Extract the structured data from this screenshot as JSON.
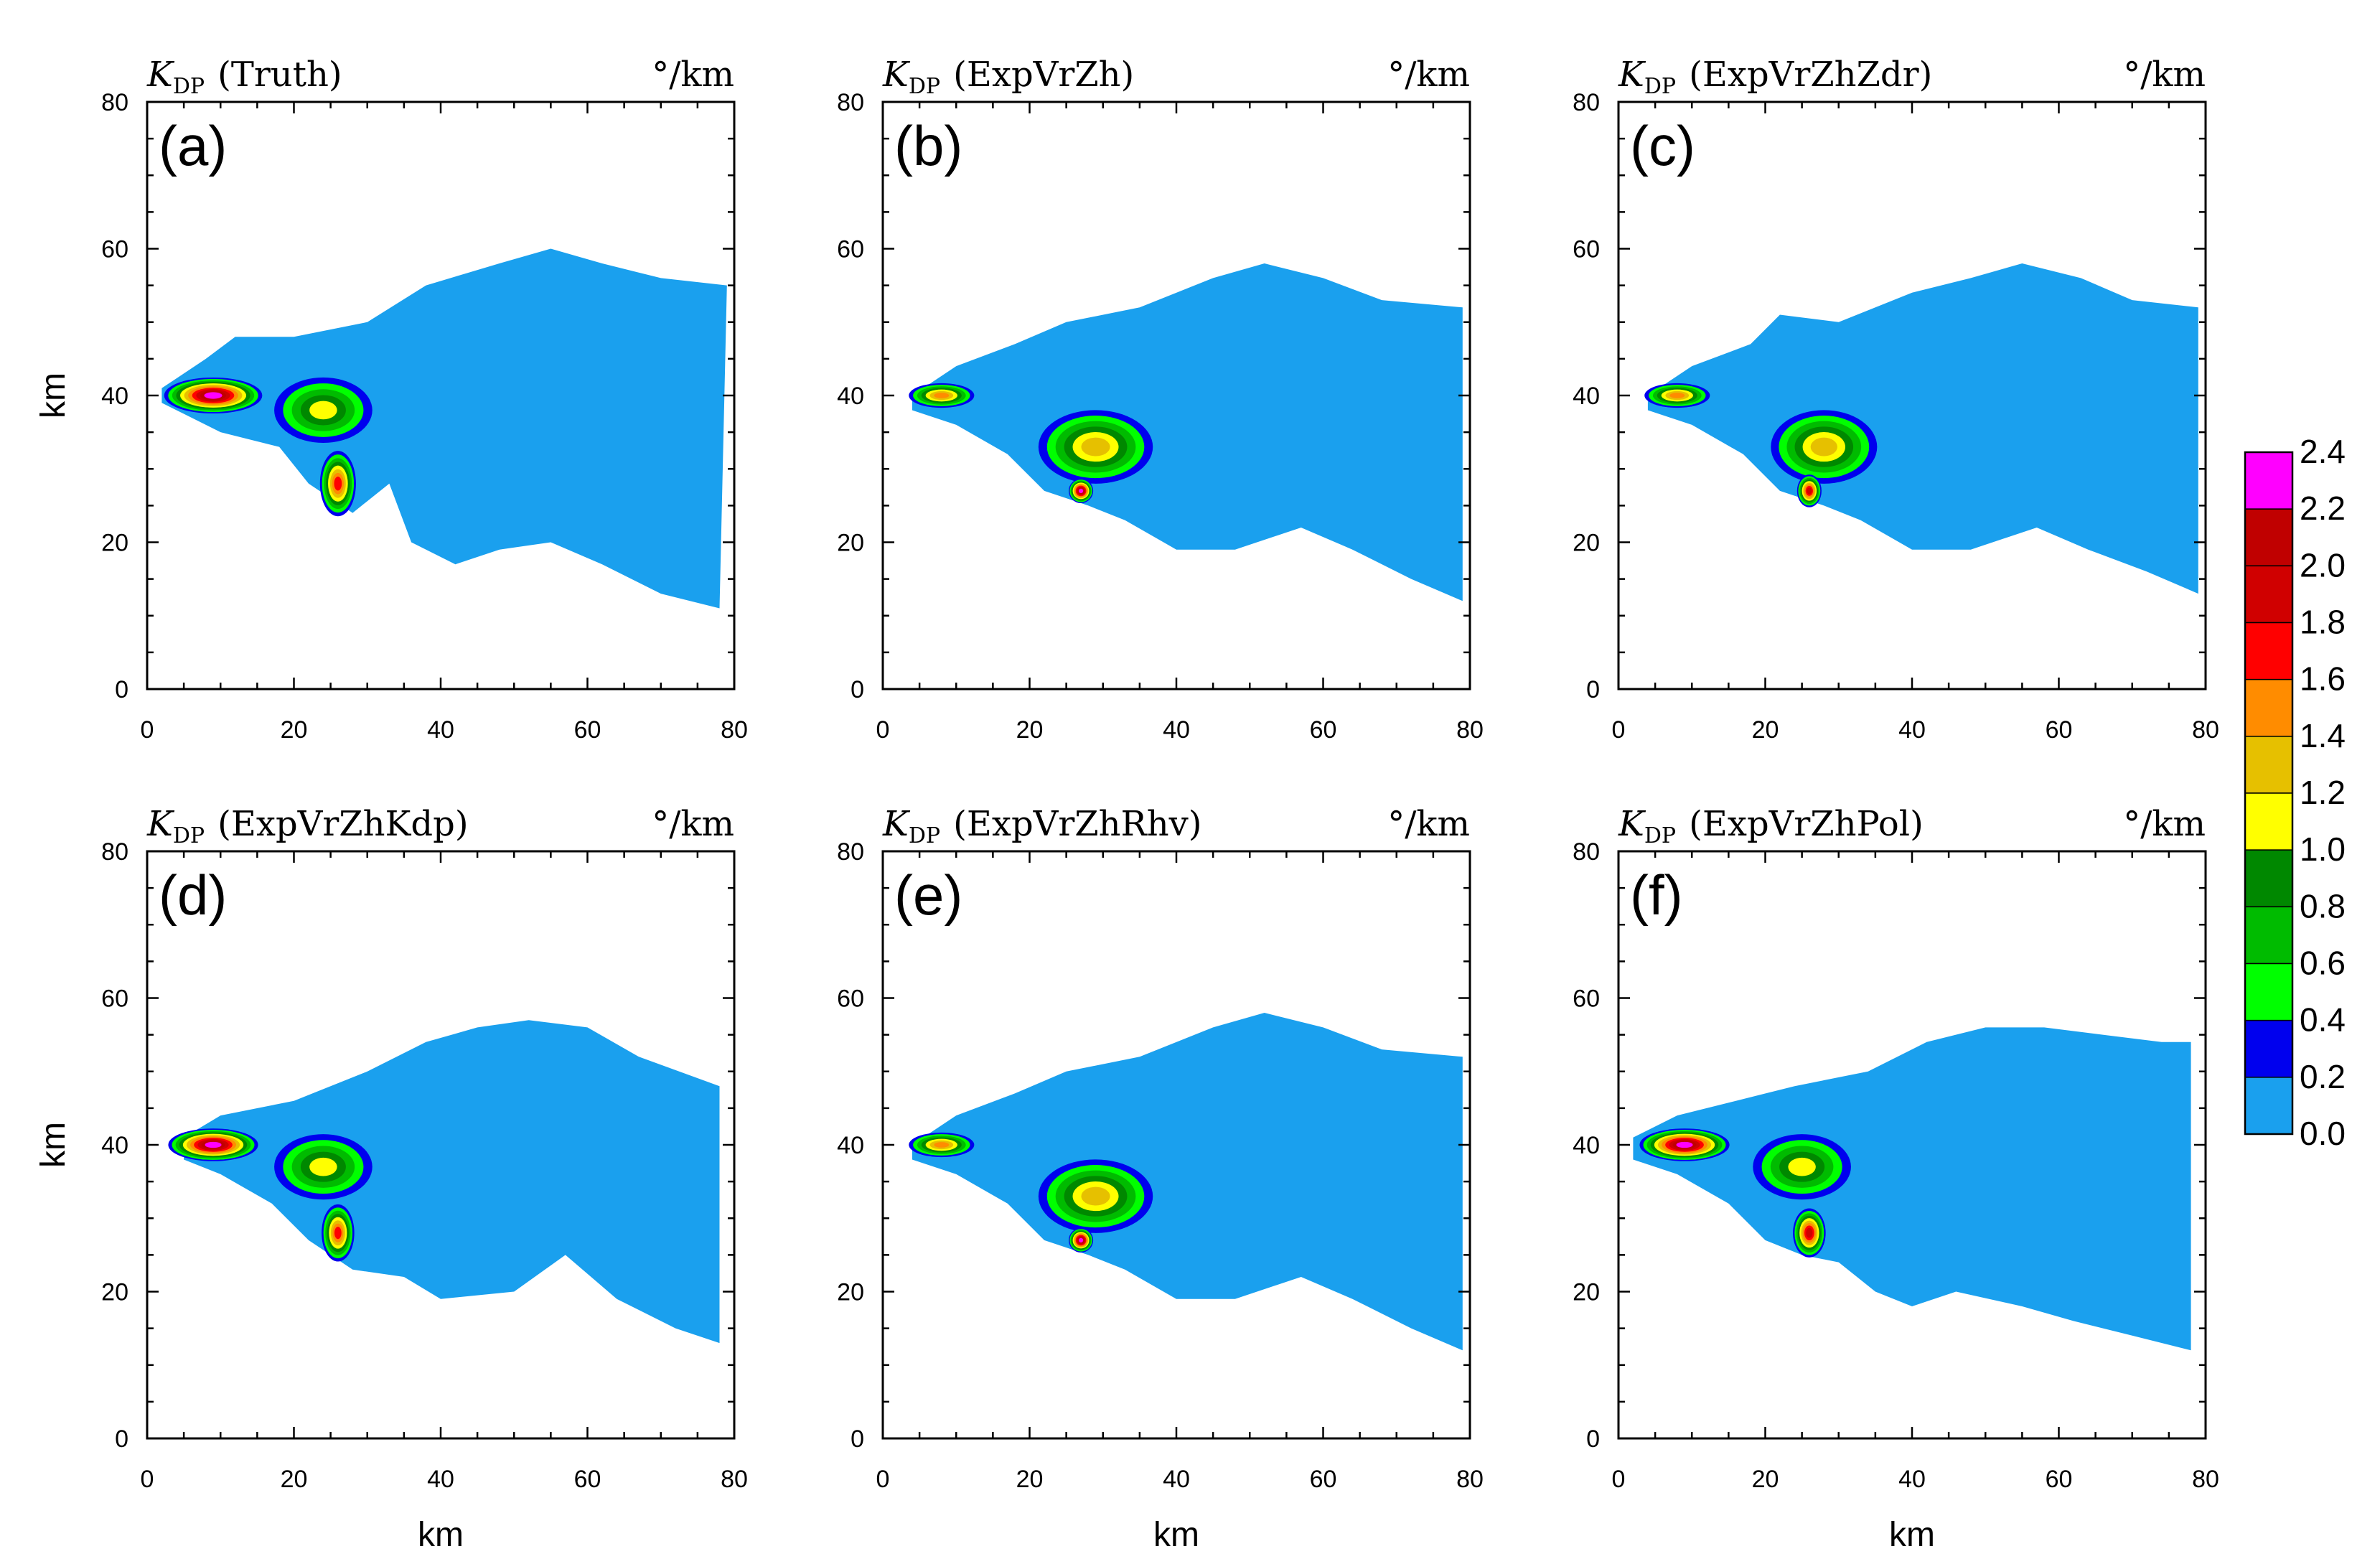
{
  "figure": {
    "xlabel": "km",
    "ylabel": "km"
  },
  "colorbar": {
    "levels": [
      "2.4",
      "2.2",
      "2.0",
      "1.8",
      "1.6",
      "1.4",
      "1.2",
      "1.0",
      "0.8",
      "0.6",
      "0.4",
      "0.2",
      "0.0"
    ],
    "colors": [
      "#ff00ff",
      "#c00000",
      "#d00000",
      "#ff0000",
      "#ff8c00",
      "#e6c000",
      "#ffff00",
      "#008800",
      "#00bb00",
      "#00ff00",
      "#0000ee",
      "#1aa0ee"
    ]
  },
  "chart_data": [
    {
      "type": "heatmap",
      "panel": "(a)",
      "variable": "K",
      "variable_sub": "DP",
      "experiment": "(Truth)",
      "units": "°/km",
      "xlabel": "",
      "ylabel": "km",
      "xlim": [
        0,
        80
      ],
      "ylim": [
        0,
        80
      ],
      "xticks": [
        "0",
        "20",
        "40",
        "60",
        "80"
      ],
      "yticks": [
        "0",
        "20",
        "40",
        "60",
        "80"
      ],
      "background_region": {
        "top": [
          [
            2,
            41
          ],
          [
            8,
            45
          ],
          [
            12,
            48
          ],
          [
            20,
            48
          ],
          [
            30,
            50
          ],
          [
            38,
            55
          ],
          [
            48,
            58
          ],
          [
            55,
            60
          ],
          [
            62,
            58
          ],
          [
            70,
            56
          ],
          [
            79,
            55
          ]
        ],
        "bottom": [
          [
            78,
            11
          ],
          [
            70,
            13
          ],
          [
            62,
            17
          ],
          [
            55,
            20
          ],
          [
            48,
            19
          ],
          [
            42,
            17
          ],
          [
            36,
            20
          ],
          [
            33,
            28
          ],
          [
            28,
            24
          ],
          [
            22,
            28
          ],
          [
            18,
            33
          ],
          [
            10,
            35
          ],
          [
            4,
            38
          ],
          [
            2,
            39
          ]
        ]
      },
      "cores": [
        {
          "x": 9,
          "y": 40,
          "rx": 6,
          "ry": 2.2,
          "peak": 2.4
        },
        {
          "x": 24,
          "y": 38,
          "rx": 6,
          "ry": 4,
          "peak": 1.2
        },
        {
          "x": 26,
          "y": 28,
          "rx": 2.2,
          "ry": 4,
          "peak": 1.8
        }
      ]
    },
    {
      "type": "heatmap",
      "panel": "(b)",
      "variable": "K",
      "variable_sub": "DP",
      "experiment": "(ExpVrZh)",
      "units": "°/km",
      "xlabel": "",
      "ylabel": "",
      "xlim": [
        0,
        80
      ],
      "ylim": [
        0,
        80
      ],
      "xticks": [
        "0",
        "20",
        "40",
        "60",
        "80"
      ],
      "yticks": [
        "0",
        "20",
        "40",
        "60",
        "80"
      ],
      "background_region": {
        "top": [
          [
            4,
            40
          ],
          [
            10,
            44
          ],
          [
            18,
            47
          ],
          [
            25,
            50
          ],
          [
            35,
            52
          ],
          [
            45,
            56
          ],
          [
            52,
            58
          ],
          [
            60,
            56
          ],
          [
            68,
            53
          ],
          [
            79,
            52
          ]
        ],
        "bottom": [
          [
            79,
            12
          ],
          [
            72,
            15
          ],
          [
            64,
            19
          ],
          [
            57,
            22
          ],
          [
            48,
            19
          ],
          [
            40,
            19
          ],
          [
            33,
            23
          ],
          [
            28,
            25
          ],
          [
            22,
            27
          ],
          [
            17,
            32
          ],
          [
            10,
            36
          ],
          [
            4,
            38
          ]
        ]
      },
      "cores": [
        {
          "x": 8,
          "y": 40,
          "rx": 4,
          "ry": 1.5,
          "peak": 1.6
        },
        {
          "x": 29,
          "y": 33,
          "rx": 7,
          "ry": 4.5,
          "peak": 1.4
        },
        {
          "x": 27,
          "y": 27,
          "rx": 1.5,
          "ry": 1.5,
          "peak": 2.4
        }
      ]
    },
    {
      "type": "heatmap",
      "panel": "(c)",
      "variable": "K",
      "variable_sub": "DP",
      "experiment": "(ExpVrZhZdr)",
      "units": "°/km",
      "xlabel": "",
      "ylabel": "",
      "xlim": [
        0,
        80
      ],
      "ylim": [
        0,
        80
      ],
      "xticks": [
        "0",
        "20",
        "40",
        "60",
        "80"
      ],
      "yticks": [
        "0",
        "20",
        "40",
        "60",
        "80"
      ],
      "background_region": {
        "top": [
          [
            4,
            40
          ],
          [
            10,
            44
          ],
          [
            18,
            47
          ],
          [
            22,
            51
          ],
          [
            30,
            50
          ],
          [
            40,
            54
          ],
          [
            48,
            56
          ],
          [
            55,
            58
          ],
          [
            63,
            56
          ],
          [
            70,
            53
          ],
          [
            79,
            52
          ]
        ],
        "bottom": [
          [
            79,
            13
          ],
          [
            72,
            16
          ],
          [
            64,
            19
          ],
          [
            57,
            22
          ],
          [
            48,
            19
          ],
          [
            40,
            19
          ],
          [
            33,
            23
          ],
          [
            28,
            25
          ],
          [
            22,
            27
          ],
          [
            17,
            32
          ],
          [
            10,
            36
          ],
          [
            4,
            38
          ]
        ]
      },
      "cores": [
        {
          "x": 8,
          "y": 40,
          "rx": 4,
          "ry": 1.5,
          "peak": 1.6
        },
        {
          "x": 28,
          "y": 33,
          "rx": 6.5,
          "ry": 4.5,
          "peak": 1.4
        },
        {
          "x": 26,
          "y": 27,
          "rx": 1.5,
          "ry": 2,
          "peak": 2.0
        }
      ]
    },
    {
      "type": "heatmap",
      "panel": "(d)",
      "variable": "K",
      "variable_sub": "DP",
      "experiment": "(ExpVrZhKdp)",
      "units": "°/km",
      "xlabel": "km",
      "ylabel": "km",
      "xlim": [
        0,
        80
      ],
      "ylim": [
        0,
        80
      ],
      "xticks": [
        "0",
        "20",
        "40",
        "60",
        "80"
      ],
      "yticks": [
        "0",
        "20",
        "40",
        "60",
        "80"
      ],
      "background_region": {
        "top": [
          [
            5,
            41
          ],
          [
            10,
            44
          ],
          [
            20,
            46
          ],
          [
            30,
            50
          ],
          [
            38,
            54
          ],
          [
            45,
            56
          ],
          [
            52,
            57
          ],
          [
            60,
            56
          ],
          [
            67,
            52
          ],
          [
            78,
            48
          ]
        ],
        "bottom": [
          [
            78,
            13
          ],
          [
            72,
            15
          ],
          [
            64,
            19
          ],
          [
            57,
            25
          ],
          [
            50,
            20
          ],
          [
            40,
            19
          ],
          [
            35,
            22
          ],
          [
            28,
            23
          ],
          [
            22,
            27
          ],
          [
            17,
            32
          ],
          [
            10,
            36
          ],
          [
            5,
            38
          ]
        ]
      },
      "cores": [
        {
          "x": 9,
          "y": 40,
          "rx": 5.5,
          "ry": 2,
          "peak": 2.4
        },
        {
          "x": 24,
          "y": 37,
          "rx": 6,
          "ry": 4,
          "peak": 1.2
        },
        {
          "x": 26,
          "y": 28,
          "rx": 2,
          "ry": 3.5,
          "peak": 1.8
        }
      ]
    },
    {
      "type": "heatmap",
      "panel": "(e)",
      "variable": "K",
      "variable_sub": "DP",
      "experiment": "(ExpVrZhRhv)",
      "units": "°/km",
      "xlabel": "km",
      "ylabel": "",
      "xlim": [
        0,
        80
      ],
      "ylim": [
        0,
        80
      ],
      "xticks": [
        "0",
        "20",
        "40",
        "60",
        "80"
      ],
      "yticks": [
        "0",
        "20",
        "40",
        "60",
        "80"
      ],
      "background_region": {
        "top": [
          [
            4,
            40
          ],
          [
            10,
            44
          ],
          [
            18,
            47
          ],
          [
            25,
            50
          ],
          [
            35,
            52
          ],
          [
            45,
            56
          ],
          [
            52,
            58
          ],
          [
            60,
            56
          ],
          [
            68,
            53
          ],
          [
            79,
            52
          ]
        ],
        "bottom": [
          [
            79,
            12
          ],
          [
            72,
            15
          ],
          [
            64,
            19
          ],
          [
            57,
            22
          ],
          [
            48,
            19
          ],
          [
            40,
            19
          ],
          [
            33,
            23
          ],
          [
            28,
            25
          ],
          [
            22,
            27
          ],
          [
            17,
            32
          ],
          [
            10,
            36
          ],
          [
            4,
            38
          ]
        ]
      },
      "cores": [
        {
          "x": 8,
          "y": 40,
          "rx": 4,
          "ry": 1.5,
          "peak": 1.6
        },
        {
          "x": 29,
          "y": 33,
          "rx": 7,
          "ry": 4.5,
          "peak": 1.4
        },
        {
          "x": 27,
          "y": 27,
          "rx": 1.5,
          "ry": 1.5,
          "peak": 2.4
        }
      ]
    },
    {
      "type": "heatmap",
      "panel": "(f)",
      "variable": "K",
      "variable_sub": "DP",
      "experiment": "(ExpVrZhPol)",
      "units": "°/km",
      "xlabel": "km",
      "ylabel": "",
      "xlim": [
        0,
        80
      ],
      "ylim": [
        0,
        80
      ],
      "xticks": [
        "0",
        "20",
        "40",
        "60",
        "80"
      ],
      "yticks": [
        "0",
        "20",
        "40",
        "60",
        "80"
      ],
      "background_region": {
        "top": [
          [
            2,
            41
          ],
          [
            8,
            44
          ],
          [
            16,
            46
          ],
          [
            24,
            48
          ],
          [
            34,
            50
          ],
          [
            42,
            54
          ],
          [
            50,
            56
          ],
          [
            58,
            56
          ],
          [
            66,
            55
          ],
          [
            74,
            54
          ],
          [
            78,
            54
          ]
        ],
        "bottom": [
          [
            78,
            12
          ],
          [
            70,
            14
          ],
          [
            62,
            16
          ],
          [
            55,
            18
          ],
          [
            46,
            20
          ],
          [
            40,
            18
          ],
          [
            35,
            20
          ],
          [
            30,
            24
          ],
          [
            25,
            25
          ],
          [
            20,
            27
          ],
          [
            15,
            32
          ],
          [
            8,
            36
          ],
          [
            2,
            38
          ]
        ]
      },
      "cores": [
        {
          "x": 9,
          "y": 40,
          "rx": 5.5,
          "ry": 2,
          "peak": 2.4
        },
        {
          "x": 25,
          "y": 37,
          "rx": 6,
          "ry": 4,
          "peak": 1.2
        },
        {
          "x": 26,
          "y": 28,
          "rx": 2,
          "ry": 3,
          "peak": 2.0
        }
      ]
    }
  ]
}
